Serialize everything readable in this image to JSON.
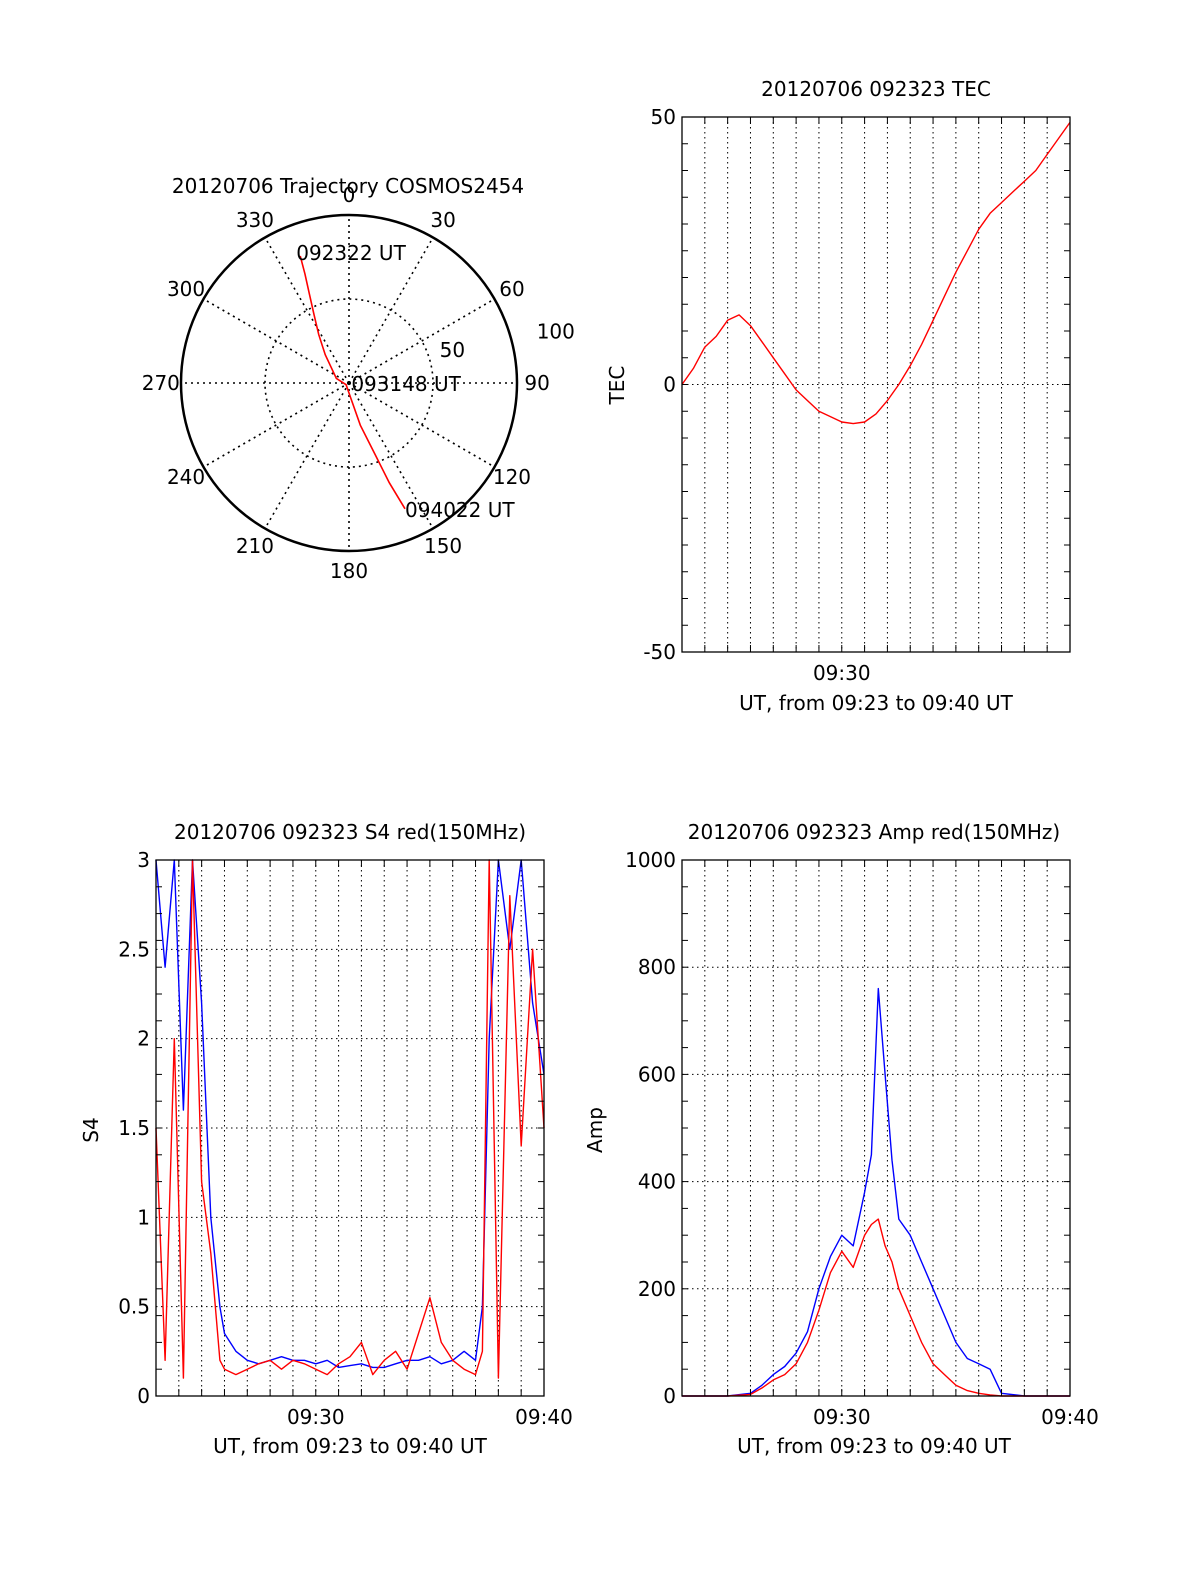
{
  "colors": {
    "red_series": "#ff0000",
    "blue_series": "#0000ff",
    "axis": "#000000"
  },
  "chart_data": [
    {
      "type": "polar",
      "title": "20120706 Trajectory COSMOS2454",
      "azimuth_labels": [
        "0",
        "30",
        "60",
        "90",
        "120",
        "150",
        "180",
        "210",
        "240",
        "270",
        "300",
        "330"
      ],
      "azimuth_values": [
        0,
        30,
        60,
        90,
        120,
        150,
        180,
        210,
        240,
        270,
        300,
        330
      ],
      "radial_labels": [
        "50",
        "100"
      ],
      "radial_values": [
        50,
        100
      ],
      "rlim": [
        0,
        100
      ],
      "grid": true,
      "trajectory": {
        "azimuth": [
          339,
          338,
          336,
          333,
          328,
          320,
          290,
          240,
          175,
          165,
          160,
          158,
          156
        ],
        "radius": [
          81,
          70,
          58,
          46,
          34,
          22,
          8,
          2,
          8,
          26,
          45,
          64,
          82
        ]
      },
      "annotations": [
        {
          "text": "092322 UT",
          "azimuth": 339,
          "radius": 81
        },
        {
          "text": "093148 UT",
          "azimuth": 270,
          "radius": 1
        },
        {
          "text": "094022 UT",
          "azimuth": 156,
          "radius": 82
        }
      ]
    },
    {
      "type": "line",
      "title": "20120706 092323 TEC",
      "xlabel": "UT, from 09:23 to 09:40 UT",
      "ylabel": "TEC",
      "xlim": [
        23,
        40
      ],
      "ylim": [
        -50,
        50
      ],
      "x_ticks": [
        30
      ],
      "x_tick_labels": [
        "09:30"
      ],
      "y_ticks": [
        -50,
        0,
        50
      ],
      "y_tick_labels": [
        "-50",
        "0",
        "50"
      ],
      "grid": true,
      "series": [
        {
          "color": "#ff0000",
          "x": [
            23.0,
            23.5,
            24.0,
            24.5,
            25.0,
            25.5,
            26.0,
            26.5,
            27.0,
            27.5,
            28.0,
            28.5,
            29.0,
            29.5,
            30.0,
            30.5,
            31.0,
            31.5,
            32.0,
            32.5,
            33.0,
            33.5,
            34.0,
            34.5,
            35.0,
            35.5,
            36.0,
            36.5,
            37.0,
            37.5,
            38.0,
            38.5,
            39.0,
            39.5,
            40.0
          ],
          "y": [
            0,
            3,
            7,
            9,
            12,
            13,
            11,
            8,
            5,
            2,
            -1,
            -3,
            -5,
            -6,
            -7,
            -7.3,
            -7,
            -5.5,
            -3,
            0,
            3.5,
            7.5,
            12,
            16.5,
            21,
            25,
            29,
            32,
            34,
            36,
            38,
            40,
            43,
            46,
            49
          ]
        }
      ]
    },
    {
      "type": "line",
      "title": "20120706 092323 S4 red(150MHz)",
      "xlabel": "UT, from 09:23 to 09:40 UT",
      "ylabel": "S4",
      "xlim": [
        23,
        40
      ],
      "ylim": [
        0,
        3
      ],
      "x_ticks": [
        30,
        40
      ],
      "x_tick_labels": [
        "09:30",
        "09:40"
      ],
      "y_ticks": [
        0,
        0.5,
        1,
        1.5,
        2,
        2.5,
        3
      ],
      "y_tick_labels": [
        "0",
        "0.5",
        "1",
        "1.5",
        "2",
        "2.5",
        "3"
      ],
      "grid": true,
      "series": [
        {
          "color": "#0000ff",
          "x": [
            23.0,
            23.4,
            23.8,
            24.2,
            24.6,
            25.0,
            25.4,
            25.8,
            26.0,
            26.5,
            27.0,
            27.5,
            28.0,
            28.5,
            29.0,
            29.5,
            30.0,
            30.5,
            31.0,
            31.5,
            32.0,
            32.5,
            33.0,
            33.5,
            34.0,
            34.5,
            35.0,
            35.5,
            36.0,
            36.5,
            37.0,
            37.3,
            37.6,
            38.0,
            38.5,
            39.0,
            39.5,
            40.0
          ],
          "y": [
            3.0,
            2.4,
            3.0,
            1.6,
            3.0,
            2.2,
            1.0,
            0.5,
            0.35,
            0.25,
            0.2,
            0.18,
            0.2,
            0.22,
            0.2,
            0.2,
            0.18,
            0.2,
            0.16,
            0.17,
            0.18,
            0.16,
            0.16,
            0.18,
            0.2,
            0.2,
            0.22,
            0.18,
            0.2,
            0.25,
            0.2,
            0.5,
            2.0,
            3.0,
            2.5,
            3.0,
            2.2,
            1.8
          ]
        },
        {
          "color": "#ff0000",
          "x": [
            23.0,
            23.4,
            23.8,
            24.2,
            24.6,
            25.0,
            25.4,
            25.8,
            26.0,
            26.5,
            27.0,
            27.5,
            28.0,
            28.5,
            29.0,
            29.5,
            30.0,
            30.5,
            31.0,
            31.5,
            32.0,
            32.5,
            33.0,
            33.5,
            34.0,
            34.5,
            35.0,
            35.5,
            36.0,
            36.5,
            37.0,
            37.3,
            37.6,
            38.0,
            38.5,
            39.0,
            39.5,
            40.0
          ],
          "y": [
            1.5,
            0.2,
            2.0,
            0.1,
            3.0,
            1.2,
            0.8,
            0.2,
            0.15,
            0.12,
            0.15,
            0.18,
            0.2,
            0.15,
            0.2,
            0.18,
            0.15,
            0.12,
            0.18,
            0.22,
            0.3,
            0.12,
            0.2,
            0.25,
            0.15,
            0.35,
            0.55,
            0.3,
            0.2,
            0.15,
            0.12,
            0.25,
            3.0,
            0.1,
            2.8,
            1.4,
            2.5,
            1.5
          ]
        }
      ]
    },
    {
      "type": "line",
      "title": "20120706 092323 Amp red(150MHz)",
      "xlabel": "UT, from 09:23 to 09:40 UT",
      "ylabel": "Amp",
      "xlim": [
        23,
        40
      ],
      "ylim": [
        0,
        1000
      ],
      "x_ticks": [
        30,
        40
      ],
      "x_tick_labels": [
        "09:30",
        "09:40"
      ],
      "y_ticks": [
        0,
        200,
        400,
        600,
        800,
        1000
      ],
      "y_tick_labels": [
        "0",
        "200",
        "400",
        "600",
        "800",
        "1000"
      ],
      "grid": true,
      "series": [
        {
          "color": "#0000ff",
          "x": [
            23.0,
            24.0,
            25.0,
            26.0,
            26.5,
            27.0,
            27.5,
            28.0,
            28.5,
            29.0,
            29.5,
            30.0,
            30.5,
            31.0,
            31.3,
            31.6,
            31.9,
            32.2,
            32.5,
            33.0,
            33.5,
            34.0,
            34.5,
            35.0,
            35.5,
            36.0,
            36.5,
            37.0,
            38.0,
            39.0,
            40.0
          ],
          "y": [
            0,
            0,
            0,
            5,
            20,
            40,
            55,
            80,
            120,
            200,
            260,
            300,
            280,
            380,
            450,
            760,
            600,
            440,
            330,
            300,
            250,
            200,
            150,
            100,
            70,
            60,
            50,
            5,
            0,
            0,
            0
          ]
        },
        {
          "color": "#ff0000",
          "x": [
            23.0,
            24.0,
            25.0,
            26.0,
            26.5,
            27.0,
            27.5,
            28.0,
            28.5,
            29.0,
            29.5,
            30.0,
            30.5,
            31.0,
            31.3,
            31.6,
            31.9,
            32.2,
            32.5,
            33.0,
            33.5,
            34.0,
            34.5,
            35.0,
            35.5,
            36.0,
            36.5,
            37.0,
            38.0,
            39.0,
            40.0
          ],
          "y": [
            0,
            0,
            0,
            3,
            15,
            30,
            40,
            60,
            100,
            160,
            230,
            270,
            240,
            300,
            320,
            330,
            280,
            250,
            200,
            150,
            100,
            60,
            40,
            20,
            10,
            5,
            2,
            0,
            0,
            0,
            0
          ]
        }
      ]
    }
  ]
}
